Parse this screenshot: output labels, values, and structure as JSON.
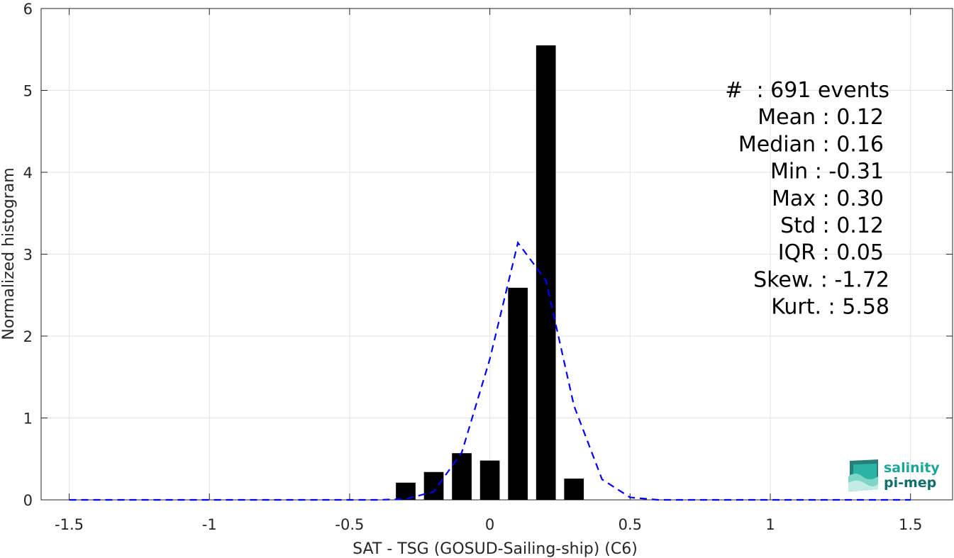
{
  "chart_data": {
    "type": "bar",
    "xlabel": "SAT - TSG (GOSUD-Sailing-ship) (C6)",
    "ylabel": "Normalized histogram",
    "xlim": [
      -1.6,
      1.65
    ],
    "ylim": [
      0,
      6
    ],
    "grid": true,
    "xticks": [
      -1.5,
      -1,
      -0.5,
      0,
      0.5,
      1,
      1.5
    ],
    "xtick_labels": [
      "-1.5",
      "-1",
      "-0.5",
      "0",
      "0.5",
      "1",
      "1.5"
    ],
    "yticks": [
      0,
      1,
      2,
      3,
      4,
      5,
      6
    ],
    "ytick_labels": [
      "0",
      "1",
      "2",
      "3",
      "4",
      "5",
      "6"
    ],
    "histogram": {
      "bin_centers": [
        -0.3,
        -0.2,
        -0.1,
        0.0,
        0.1,
        0.2,
        0.3
      ],
      "values": [
        0.21,
        0.34,
        0.57,
        0.48,
        2.59,
        5.55,
        0.26
      ],
      "bar_width": 0.07,
      "color": "#000000"
    },
    "fit_curve": {
      "style": "dashed",
      "color": "#0000ff",
      "x": [
        -1.5,
        -1.4,
        -1.3,
        -1.2,
        -1.1,
        -1.0,
        -0.9,
        -0.8,
        -0.7,
        -0.6,
        -0.5,
        -0.4,
        -0.3,
        -0.2,
        -0.1,
        0.0,
        0.1,
        0.2,
        0.3,
        0.4,
        0.5,
        0.6,
        0.7,
        0.8,
        0.9,
        1.0,
        1.1,
        1.2,
        1.3,
        1.4,
        1.5
      ],
      "y": [
        0,
        0,
        0,
        0,
        0,
        0,
        0,
        0,
        0,
        0,
        0,
        0,
        0.01,
        0.1,
        0.58,
        1.72,
        3.14,
        2.68,
        1.15,
        0.25,
        0.03,
        0,
        0,
        0,
        0,
        0,
        0,
        0,
        0,
        0,
        0
      ]
    },
    "stats": [
      "#  : 691 events",
      "Mean : 0.12",
      "Median : 0.16",
      "Min : -0.31",
      "Max : 0.30",
      "Std : 0.12",
      "IQR : 0.05",
      "Skew. : -1.72",
      "Kurt. : 5.58"
    ]
  },
  "logo": {
    "line1": "salinity",
    "line2": "pi-mep",
    "color_primary": "#1aa69a",
    "color_dark": "#0f6f6a"
  }
}
